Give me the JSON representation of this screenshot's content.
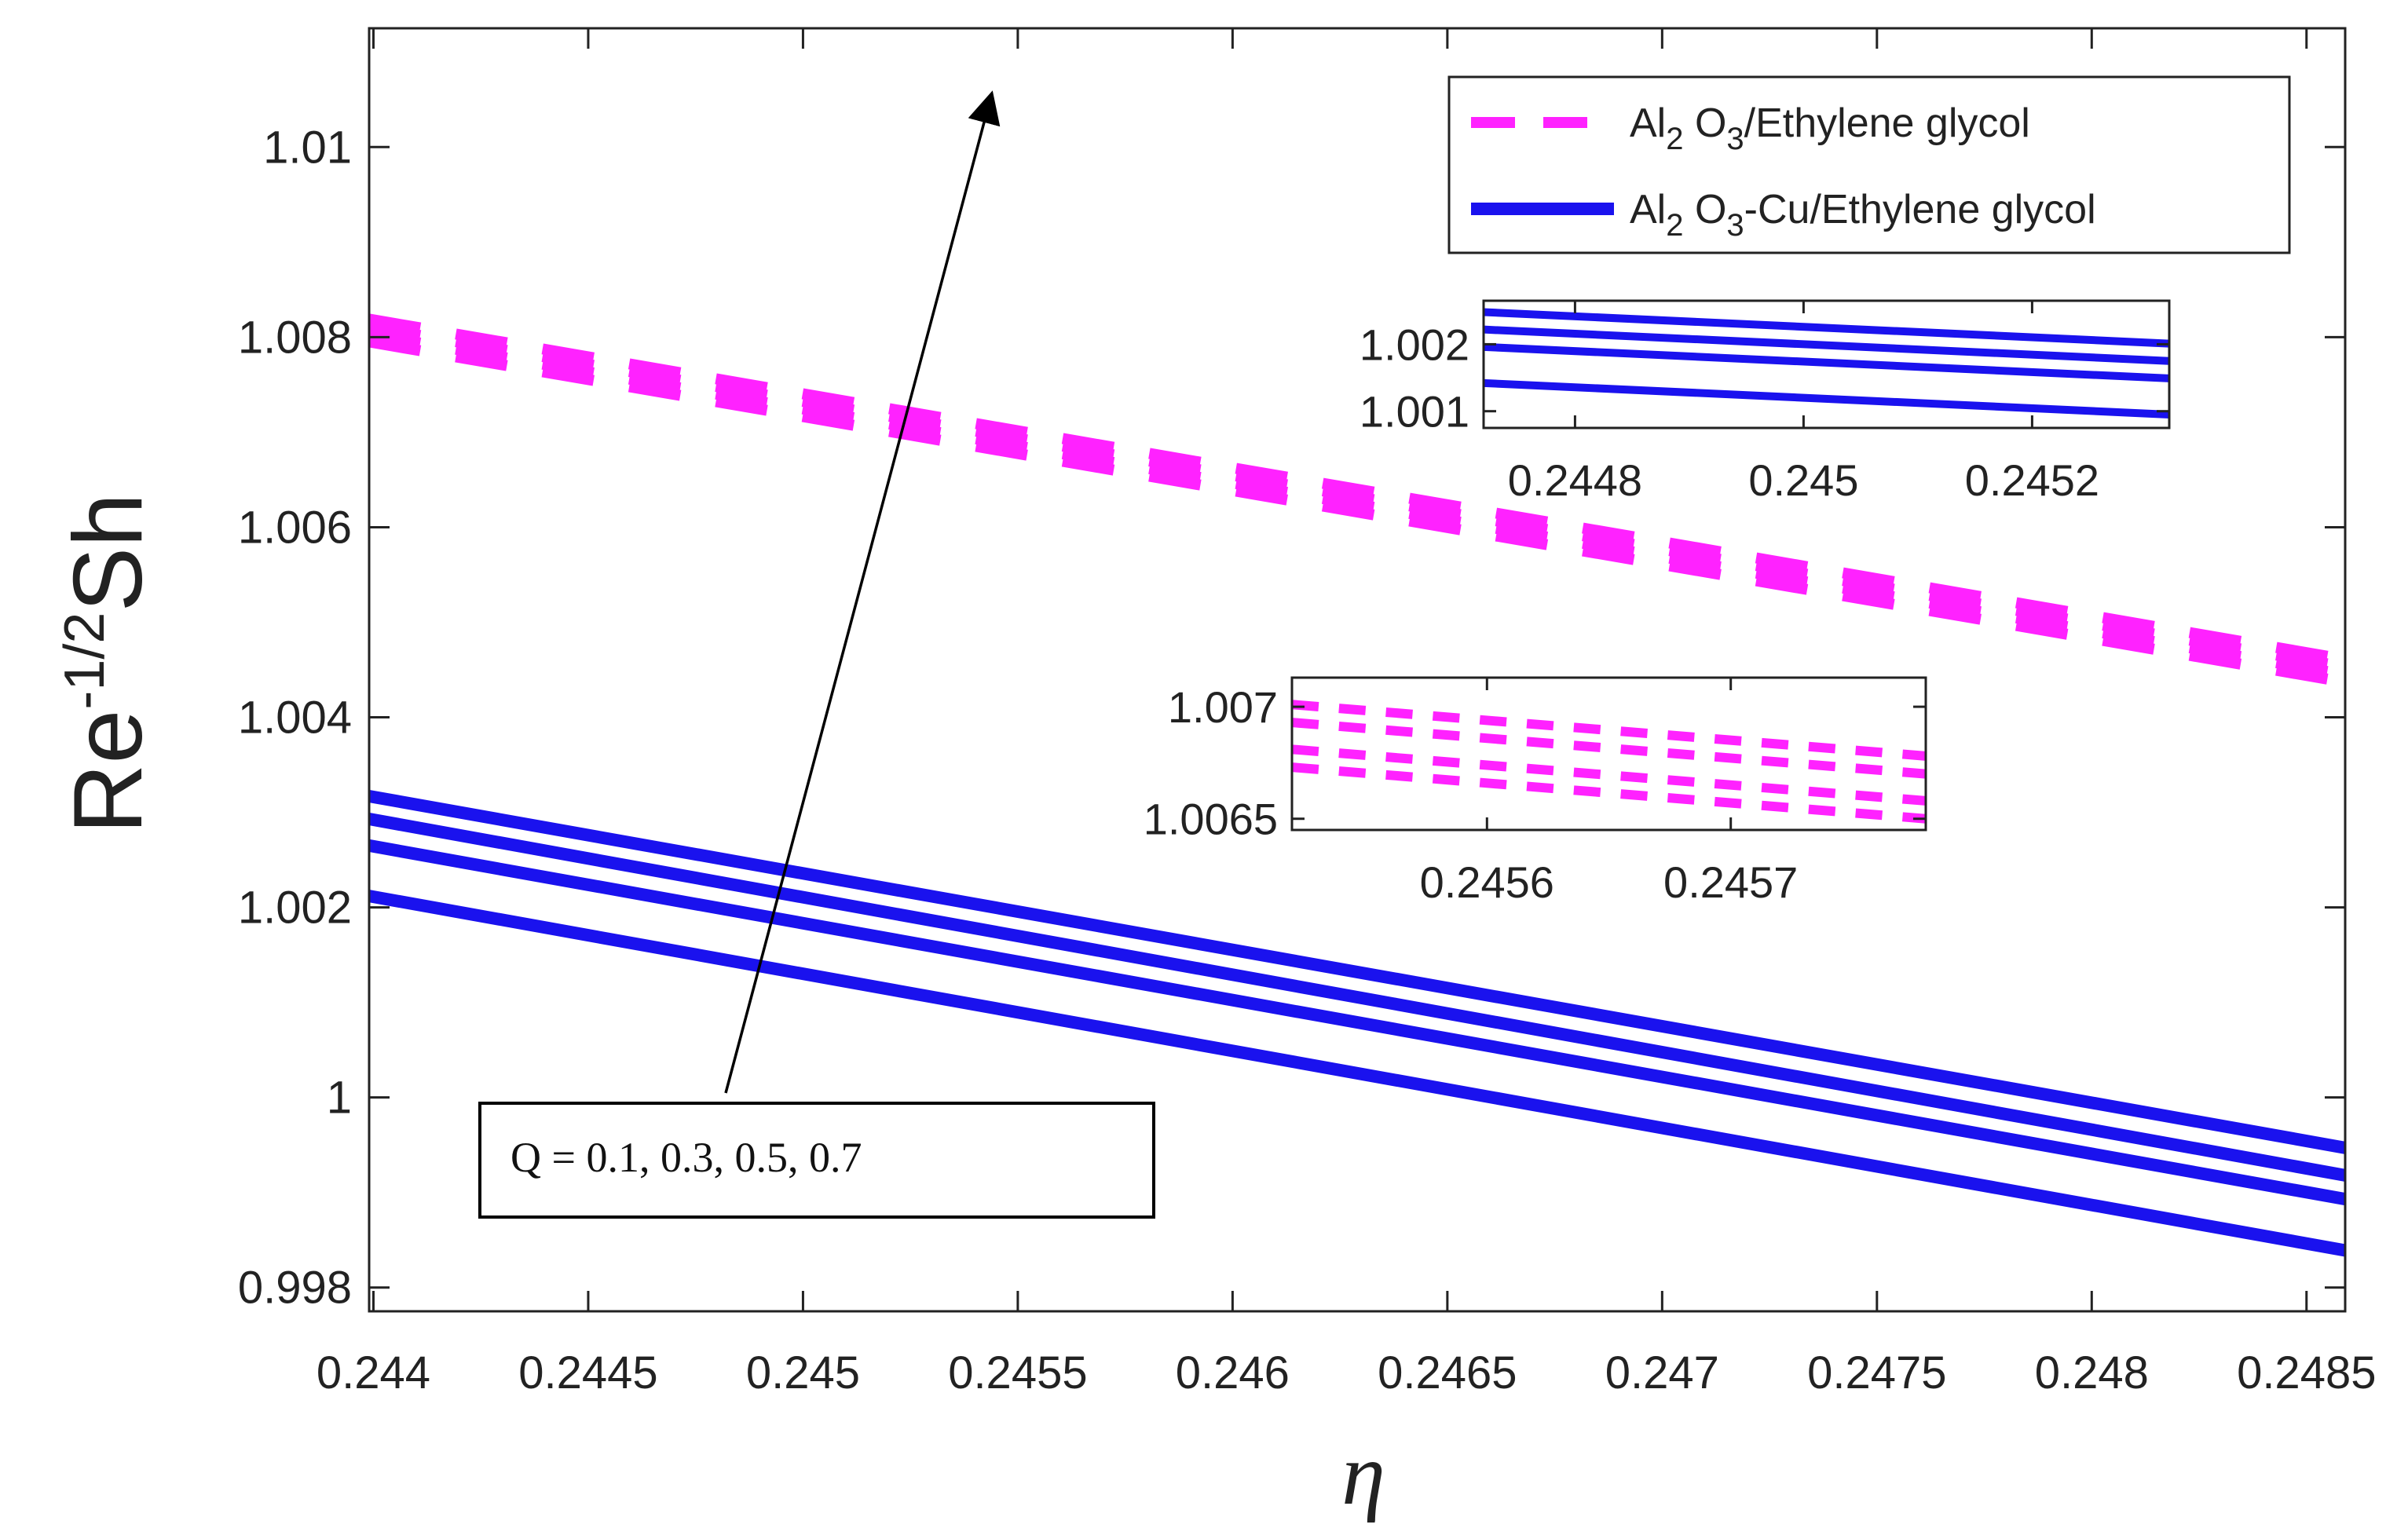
{
  "chart_data": {
    "type": "line",
    "title": "",
    "xlabel": "η",
    "ylabel": {
      "base": "Re",
      "sup": "-1/2",
      "tail": "Sh"
    },
    "xlim": [
      0.24399,
      0.24859
    ],
    "ylim": [
      0.99775,
      1.01125
    ],
    "xticks": [
      "0.244",
      "0.2445",
      "0.245",
      "0.2455",
      "0.246",
      "0.2465",
      "0.247",
      "0.2475",
      "0.248",
      "0.2485"
    ],
    "yticks": [
      "0.998",
      "1",
      "1.002",
      "1.004",
      "1.006",
      "1.008",
      "1.01"
    ],
    "x": [
      0.24399,
      0.24859
    ],
    "groups": [
      {
        "name": "Al2 O3/Ethylene glycol",
        "style": "dashed",
        "color": "#ff22ff",
        "series": [
          {
            "Q": 0.1,
            "y": [
              1.00795,
              1.00437
            ]
          },
          {
            "Q": 0.3,
            "y": [
              1.00803,
              1.00445
            ]
          },
          {
            "Q": 0.5,
            "y": [
              1.00811,
              1.00453
            ]
          },
          {
            "Q": 0.7,
            "y": [
              1.00819,
              1.00461
            ]
          }
        ]
      },
      {
        "name": "Al2 O3-Cu/Ethylene glycol",
        "style": "solid",
        "color": "#1a12ee",
        "series": [
          {
            "Q": 0.1,
            "y": [
              1.00212,
              0.99839
            ]
          },
          {
            "Q": 0.3,
            "y": [
              1.00265,
              0.99893
            ]
          },
          {
            "Q": 0.5,
            "y": [
              1.00293,
              0.99918
            ]
          },
          {
            "Q": 0.7,
            "y": [
              1.00317,
              0.99947
            ]
          }
        ]
      }
    ],
    "legend": {
      "placement": "top-right",
      "entries": [
        {
          "main": "Al",
          "sub": "2",
          "rest": " O",
          "sub2": "3",
          "tail": "/Ethylene glycol"
        },
        {
          "main": "Al",
          "sub": "2",
          "rest": " O",
          "sub2": "3",
          "tail": "-Cu/Ethylene glycol"
        }
      ]
    },
    "annotation": {
      "text": "Q = 0.1, 0.3, 0.5, 0.7",
      "meaning": "arrow shows increasing Q"
    },
    "insets": [
      {
        "group": "Al2 O3-Cu/Ethylene glycol",
        "xlim": [
          0.24472,
          0.24532
        ],
        "ylim": [
          1.00075,
          1.00265
        ],
        "xticks": [
          "0.2448",
          "0.245",
          "0.2452"
        ],
        "yticks": [
          "1.001",
          "1.002"
        ],
        "series": [
          {
            "Q": 0.1,
            "y": [
              1.00142,
              1.00095
            ]
          },
          {
            "Q": 0.3,
            "y": [
              1.00196,
              1.00149
            ]
          },
          {
            "Q": 0.5,
            "y": [
              1.00222,
              1.00175
            ]
          },
          {
            "Q": 0.7,
            "y": [
              1.00248,
              1.00201
            ]
          }
        ]
      },
      {
        "group": "Al2 O3/Ethylene glycol",
        "xlim": [
          0.24552,
          0.24578
        ],
        "ylim": [
          1.00645,
          1.00713
        ],
        "xticks": [
          "0.2456",
          "0.2457"
        ],
        "yticks": [
          "1.0065",
          "1.007"
        ],
        "series": [
          {
            "Q": 0.1,
            "y": [
              1.00673,
              1.0065
            ]
          },
          {
            "Q": 0.3,
            "y": [
              1.00681,
              1.00658
            ]
          },
          {
            "Q": 0.5,
            "y": [
              1.00693,
              1.0067
            ]
          },
          {
            "Q": 0.7,
            "y": [
              1.00701,
              1.00678
            ]
          }
        ]
      }
    ]
  }
}
